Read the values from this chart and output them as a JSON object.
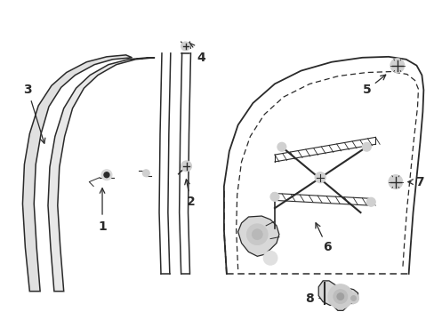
{
  "bg_color": "#ffffff",
  "line_color": "#2a2a2a",
  "figsize": [
    4.89,
    3.6
  ],
  "dpi": 100,
  "label_fontsize": 10
}
